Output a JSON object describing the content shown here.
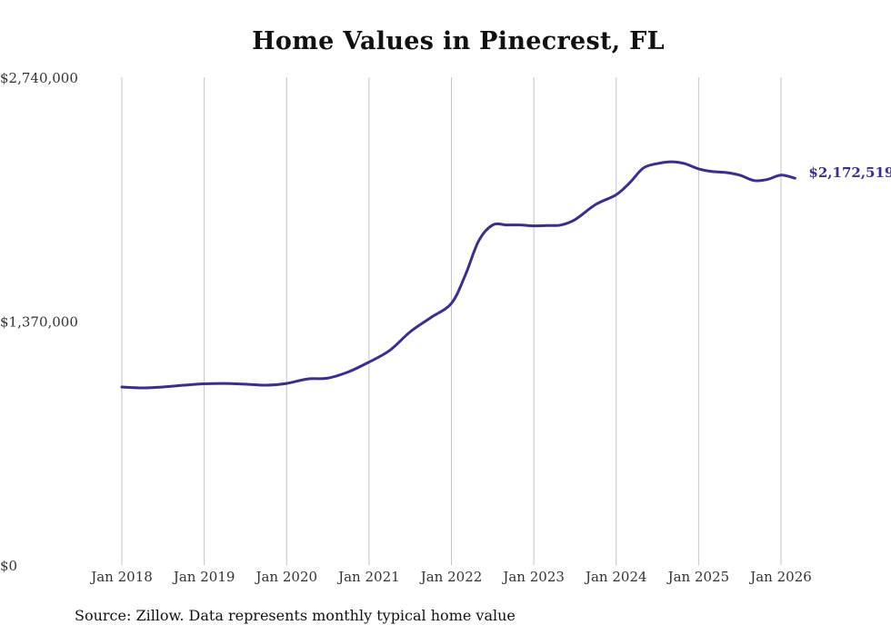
{
  "chart_data": {
    "type": "line",
    "title": "Home Values in Pinecrest, FL",
    "xlabel": "",
    "ylabel": "",
    "ylim": [
      0,
      2740000
    ],
    "y_ticks": [
      {
        "value": 0,
        "label": "$0"
      },
      {
        "value": 1370000,
        "label": "$1,370,000"
      },
      {
        "value": 2740000,
        "label": "$2,740,000"
      }
    ],
    "x_range": [
      2018.0,
      2026.0
    ],
    "x_ticks": [
      {
        "value": 2018,
        "label": "Jan 2018"
      },
      {
        "value": 2019,
        "label": "Jan 2019"
      },
      {
        "value": 2020,
        "label": "Jan 2020"
      },
      {
        "value": 2021,
        "label": "Jan 2021"
      },
      {
        "value": 2022,
        "label": "Jan 2022"
      },
      {
        "value": 2023,
        "label": "Jan 2023"
      },
      {
        "value": 2024,
        "label": "Jan 2024"
      },
      {
        "value": 2025,
        "label": "Jan 2025"
      },
      {
        "value": 2026,
        "label": "Jan 2026"
      }
    ],
    "grid": {
      "vertical": true,
      "horizontal": false
    },
    "line_color": "#3b2e8c",
    "series": [
      {
        "name": "Typical home value",
        "x": [
          2018.0,
          2018.25,
          2018.5,
          2018.75,
          2019.0,
          2019.25,
          2019.5,
          2019.75,
          2020.0,
          2020.25,
          2020.5,
          2020.75,
          2021.0,
          2021.25,
          2021.5,
          2021.75,
          2022.0,
          2022.17,
          2022.33,
          2022.5,
          2022.67,
          2022.83,
          2023.0,
          2023.17,
          2023.33,
          2023.5,
          2023.75,
          2024.0,
          2024.17,
          2024.33,
          2024.5,
          2024.67,
          2024.83,
          2025.0,
          2025.17,
          2025.33,
          2025.5,
          2025.67,
          2025.83,
          2026.0,
          2026.17
        ],
        "values": [
          1000000,
          995000,
          1000000,
          1010000,
          1018000,
          1020000,
          1016000,
          1010000,
          1020000,
          1045000,
          1050000,
          1085000,
          1140000,
          1205000,
          1310000,
          1390000,
          1470000,
          1630000,
          1820000,
          1910000,
          1910000,
          1910000,
          1905000,
          1907000,
          1910000,
          1940000,
          2025000,
          2080000,
          2150000,
          2230000,
          2255000,
          2265000,
          2255000,
          2225000,
          2210000,
          2205000,
          2190000,
          2160000,
          2165000,
          2190000,
          2172519
        ]
      }
    ],
    "end_label": "$2,172,519"
  },
  "source_note": "Source: Zillow. Data represents monthly typical home value"
}
